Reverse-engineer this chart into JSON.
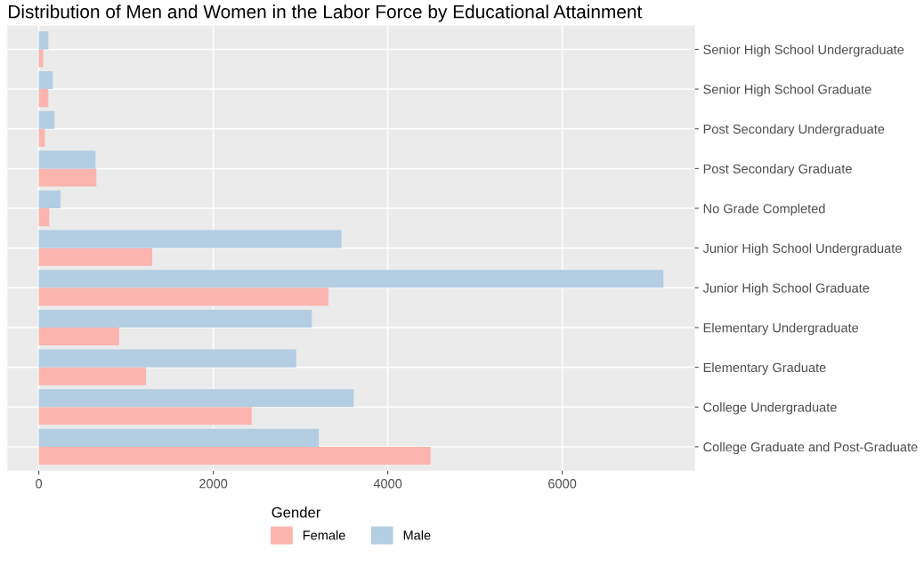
{
  "chart_data": {
    "type": "bar",
    "orientation": "horizontal",
    "title": "Distribution of Men and Women in the Labor Force by Educational Attainment",
    "categories": [
      "Senior High School Undergraduate",
      "Senior High School Graduate",
      "Post Secondary Undergraduate",
      "Post Secondary Graduate",
      "No Grade Completed",
      "Junior High School Undergraduate",
      "Junior High School Graduate",
      "Elementary Undergraduate",
      "Elementary Graduate",
      "College Undergraduate",
      "College Graduate and Post-Graduate"
    ],
    "series": [
      {
        "name": "Female",
        "color": "#fbb4ae",
        "values": [
          50,
          110,
          70,
          660,
          120,
          1300,
          3320,
          920,
          1230,
          2440,
          4490
        ]
      },
      {
        "name": "Male",
        "color": "#b3cde3",
        "values": [
          110,
          160,
          180,
          650,
          250,
          3470,
          7160,
          3130,
          2950,
          3610,
          3210
        ]
      }
    ],
    "xlim": [
      -360,
      7520
    ],
    "xticks": [
      0,
      2000,
      4000,
      6000
    ],
    "legend_title": "Gender",
    "legend": "bottom",
    "grid": true
  }
}
